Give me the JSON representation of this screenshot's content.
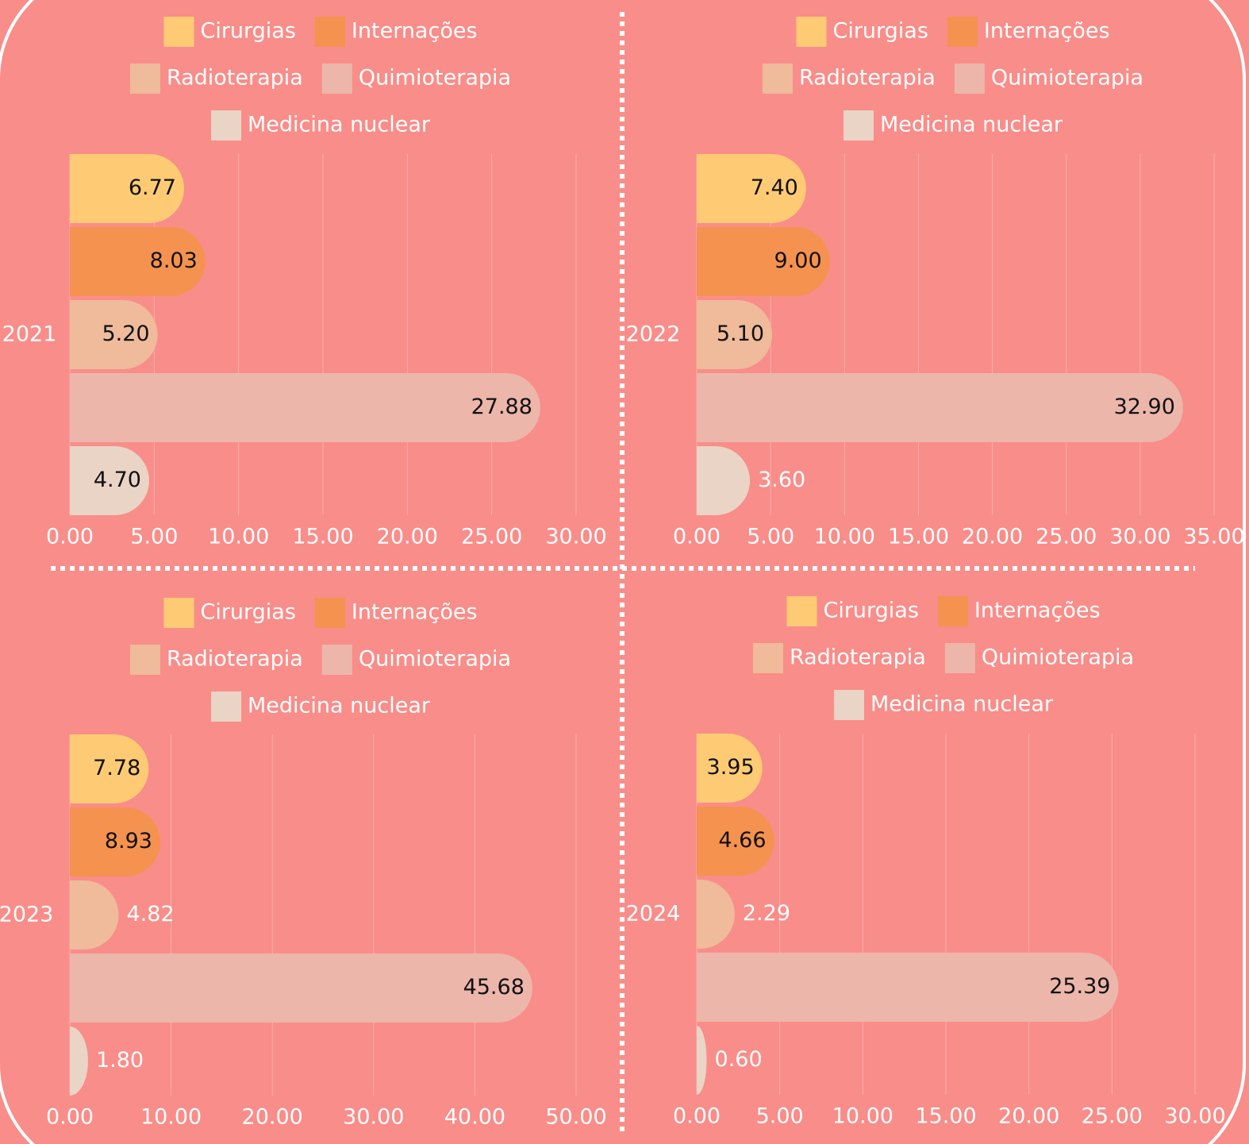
{
  "chart_data": [
    {
      "type": "bar",
      "orientation": "horizontal",
      "categories": [
        "2021"
      ],
      "series": [
        {
          "name": "Cirurgias",
          "color": "#fecb74",
          "values": [
            6.77
          ],
          "value_labels": [
            "6.77"
          ]
        },
        {
          "name": "Internações",
          "color": "#f5924f",
          "values": [
            8.03
          ],
          "value_labels": [
            "8.03"
          ]
        },
        {
          "name": "Radioterapia",
          "color": "#efbb9b",
          "values": [
            5.2
          ],
          "value_labels": [
            "5.20"
          ]
        },
        {
          "name": "Quimioterapia",
          "color": "#ecb6ab",
          "values": [
            27.88
          ],
          "value_labels": [
            "27.88"
          ]
        },
        {
          "name": "Medicina nuclear",
          "color": "#ead4c6",
          "values": [
            4.7
          ],
          "value_labels": [
            "4.70"
          ]
        }
      ],
      "xlim": [
        0,
        30
      ],
      "xticks": [
        {
          "value": 0,
          "label": "0.00"
        },
        {
          "value": 5,
          "label": "5.00"
        },
        {
          "value": 10,
          "label": "10.00"
        },
        {
          "value": 15,
          "label": "15.00"
        },
        {
          "value": 20,
          "label": "20.00"
        },
        {
          "value": 25,
          "label": "25.00"
        },
        {
          "value": 30,
          "label": "30.00"
        }
      ],
      "grid": true
    },
    {
      "type": "bar",
      "orientation": "horizontal",
      "categories": [
        "2022"
      ],
      "series": [
        {
          "name": "Cirurgias",
          "color": "#fecb74",
          "values": [
            7.4
          ],
          "value_labels": [
            "7.40"
          ]
        },
        {
          "name": "Internações",
          "color": "#f5924f",
          "values": [
            9.0
          ],
          "value_labels": [
            "9.00"
          ]
        },
        {
          "name": "Radioterapia",
          "color": "#efbb9b",
          "values": [
            5.1
          ],
          "value_labels": [
            "5.10"
          ]
        },
        {
          "name": "Quimioterapia",
          "color": "#ecb6ab",
          "values": [
            32.9
          ],
          "value_labels": [
            "32.90"
          ]
        },
        {
          "name": "Medicina nuclear",
          "color": "#ead4c6",
          "values": [
            3.6
          ],
          "value_labels": [
            "3.60"
          ]
        }
      ],
      "xlim": [
        0,
        35
      ],
      "xticks": [
        {
          "value": 0,
          "label": "0.00"
        },
        {
          "value": 5,
          "label": "5.00"
        },
        {
          "value": 10,
          "label": "10.00"
        },
        {
          "value": 15,
          "label": "15.00"
        },
        {
          "value": 20,
          "label": "20.00"
        },
        {
          "value": 25,
          "label": "25.00"
        },
        {
          "value": 30,
          "label": "30.00"
        },
        {
          "value": 35,
          "label": "35.00"
        }
      ],
      "grid": true
    },
    {
      "type": "bar",
      "orientation": "horizontal",
      "categories": [
        "2023"
      ],
      "series": [
        {
          "name": "Cirurgias",
          "color": "#fecb74",
          "values": [
            7.78
          ],
          "value_labels": [
            "7.78"
          ]
        },
        {
          "name": "Internações",
          "color": "#f5924f",
          "values": [
            8.93
          ],
          "value_labels": [
            "8.93"
          ]
        },
        {
          "name": "Radioterapia",
          "color": "#efbb9b",
          "values": [
            4.82
          ],
          "value_labels": [
            "4.82"
          ]
        },
        {
          "name": "Quimioterapia",
          "color": "#ecb6ab",
          "values": [
            45.68
          ],
          "value_labels": [
            "45.68"
          ]
        },
        {
          "name": "Medicina nuclear",
          "color": "#ead4c6",
          "values": [
            1.8
          ],
          "value_labels": [
            "1.80"
          ]
        }
      ],
      "xlim": [
        0,
        50
      ],
      "xticks": [
        {
          "value": 0,
          "label": "0.00"
        },
        {
          "value": 10,
          "label": "10.00"
        },
        {
          "value": 20,
          "label": "20.00"
        },
        {
          "value": 30,
          "label": "30.00"
        },
        {
          "value": 40,
          "label": "40.00"
        },
        {
          "value": 50,
          "label": "50.00"
        }
      ],
      "grid": true
    },
    {
      "type": "bar",
      "orientation": "horizontal",
      "categories": [
        "2024"
      ],
      "series": [
        {
          "name": "Cirurgias",
          "color": "#fecb74",
          "values": [
            3.95
          ],
          "value_labels": [
            "3.95"
          ]
        },
        {
          "name": "Internações",
          "color": "#f5924f",
          "values": [
            4.66
          ],
          "value_labels": [
            "4.66"
          ]
        },
        {
          "name": "Radioterapia",
          "color": "#efbb9b",
          "values": [
            2.29
          ],
          "value_labels": [
            "2.29"
          ]
        },
        {
          "name": "Quimioterapia",
          "color": "#ecb6ab",
          "values": [
            25.39
          ],
          "value_labels": [
            "25.39"
          ]
        },
        {
          "name": "Medicina nuclear",
          "color": "#ead4c6",
          "values": [
            0.6
          ],
          "value_labels": [
            "0.60"
          ]
        }
      ],
      "xlim": [
        0,
        30
      ],
      "xticks": [
        {
          "value": 0,
          "label": "0.00"
        },
        {
          "value": 5,
          "label": "5.00"
        },
        {
          "value": 10,
          "label": "10.00"
        },
        {
          "value": 15,
          "label": "15.00"
        },
        {
          "value": 20,
          "label": "20.00"
        },
        {
          "value": 25,
          "label": "25.00"
        },
        {
          "value": 30,
          "label": "30.00"
        }
      ],
      "grid": true
    }
  ]
}
